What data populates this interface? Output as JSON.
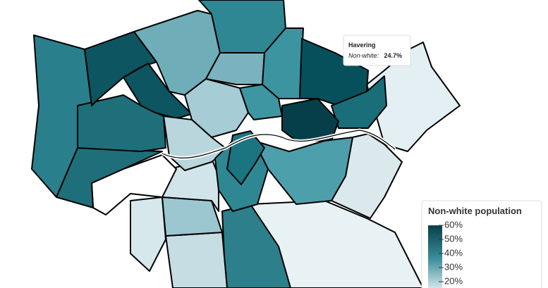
{
  "tooltip": {
    "title": "Havering",
    "label": "Non-white:",
    "value": "24.7%"
  },
  "legend": {
    "title": "Non-white population",
    "ticks": [
      {
        "value": 60,
        "label": "60%"
      },
      {
        "value": 50,
        "label": "50%"
      },
      {
        "value": 40,
        "label": "40%"
      },
      {
        "value": 30,
        "label": "30%"
      },
      {
        "value": 20,
        "label": "20%"
      }
    ]
  }
}
